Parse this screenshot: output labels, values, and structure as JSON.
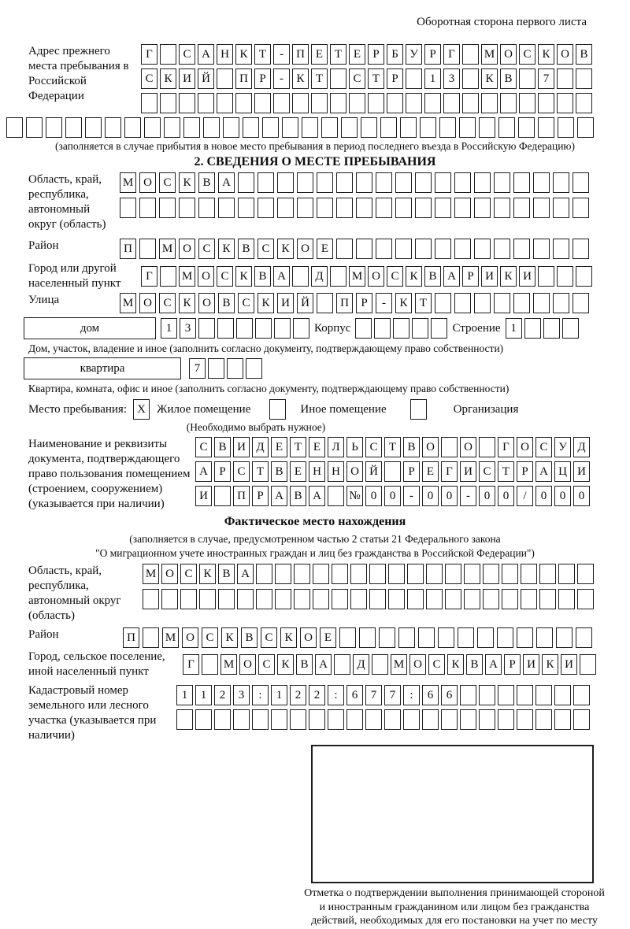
{
  "page": {
    "header_note": "Оборотная сторона первого листа"
  },
  "prev_address": {
    "label": "Адрес прежнего места пребывания в Российской Федерации",
    "row1": "Г САНКТ-ПЕТЕРБУРГ МОСКОВ",
    "row2": "СКИЙ ПР-КТ СТР 13 КВ 7",
    "row3": "",
    "row4": "",
    "note": "(заполняется в случае прибытия в новое место пребывания в период последнего въезда в Российскую Федерацию)"
  },
  "section2": {
    "title": "2. СВЕДЕНИЯ О МЕСТЕ ПРЕБЫВАНИЯ",
    "oblast": {
      "label": "Область, край, республика, автономный округ (область)",
      "row1": "МОСКВА",
      "row2": ""
    },
    "raion": {
      "label": "Район",
      "row1": "П МОСКВСКОЕ"
    },
    "gorod": {
      "label": "Город или другой населенный пункт",
      "row1": "Г МОСКВА Д МОСКВАРИКИ"
    },
    "ulitsa": {
      "label": "Улица",
      "row1": "МОСКОВСКИЙ ПР-КТ"
    },
    "dom": {
      "label": "дом",
      "value": "13",
      "korpus_label": "Корпус",
      "korpus_value": "",
      "stroenie_label": "Строение",
      "stroenie_value": "1"
    },
    "dom_note": "Дом, участок, владение и иное (заполнить согласно документу, подтверждающему право собственности)",
    "kvartira": {
      "label": "квартира",
      "value": "7"
    },
    "kvartira_note": "Квартира, комната, офис и иное (заполнить согласно документу, подтверждающему право собственности)",
    "mesto": {
      "label": "Место пребывания:",
      "options": [
        {
          "label": "Жилое помещение",
          "checked": "X"
        },
        {
          "label": "Иное помещение",
          "checked": ""
        },
        {
          "label": "Организация",
          "checked": ""
        }
      ],
      "note": "(Необходимо выбрать нужное)"
    },
    "doc": {
      "label": "Наименование и реквизиты документа, подтверждающего право пользования помещением (строением, сооружением) (указывается при наличии)",
      "row1": "СВИДЕТЕЛЬСТВО О ГОСУД",
      "row2": "АРСТВЕННОЙ РЕГИСТРАЦИ",
      "row3": "И ПРАВА №00-00-00/000"
    }
  },
  "fact": {
    "title": "Фактическое место нахождения",
    "note1": "(заполняется в случае, предусмотренном частью 2 статьи 21 Федерального закона",
    "note2": "\"О миграционном учете иностранных граждан и лиц без гражданства в Российской Федерации\")",
    "oblast": {
      "label": "Область, край, республика, автономный округ (область)",
      "row1": "МОСКВА",
      "row2": ""
    },
    "raion": {
      "label": "Район",
      "row1": "П МОСКВСКОЕ"
    },
    "gorod": {
      "label": "Город, сельское поселение, иной населенный пункт",
      "row1": "Г МОСКВА Д МОСКВАРИКИ"
    },
    "kadastr": {
      "label": "Кадастровый номер земельного или лесного участка (указывается при наличии)",
      "row1": "1123:122:677:66",
      "row2": ""
    },
    "stamp_caption": "Отметка о подтверждении выполнения принимающей стороной и иностранным гражданином или лицом без гражданства действий, необходимых для его постановки на учет по месту пребывания"
  }
}
